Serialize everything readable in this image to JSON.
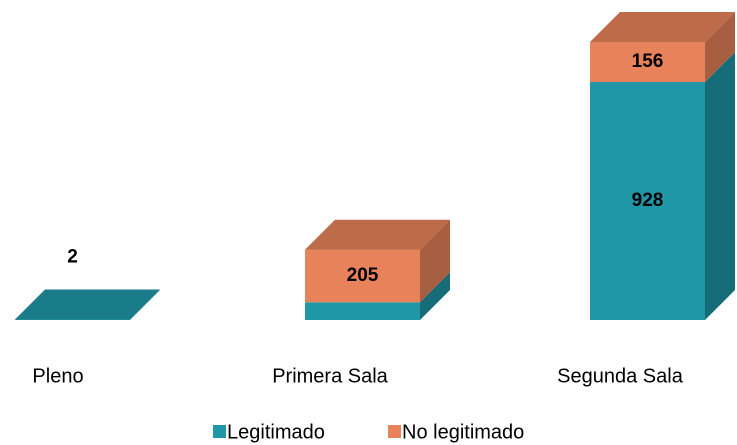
{
  "chart_data": {
    "type": "bar3d_stacked",
    "categories": [
      "Pleno",
      "Primera Sala",
      "Segunda Sala"
    ],
    "series": [
      {
        "name": "Legitimado",
        "color": "#1f97a6",
        "values": [
          2,
          69,
          928
        ]
      },
      {
        "name": "No legitimado",
        "color": "#e8825a",
        "values": [
          null,
          205,
          156
        ]
      }
    ],
    "legend": "bottom"
  }
}
